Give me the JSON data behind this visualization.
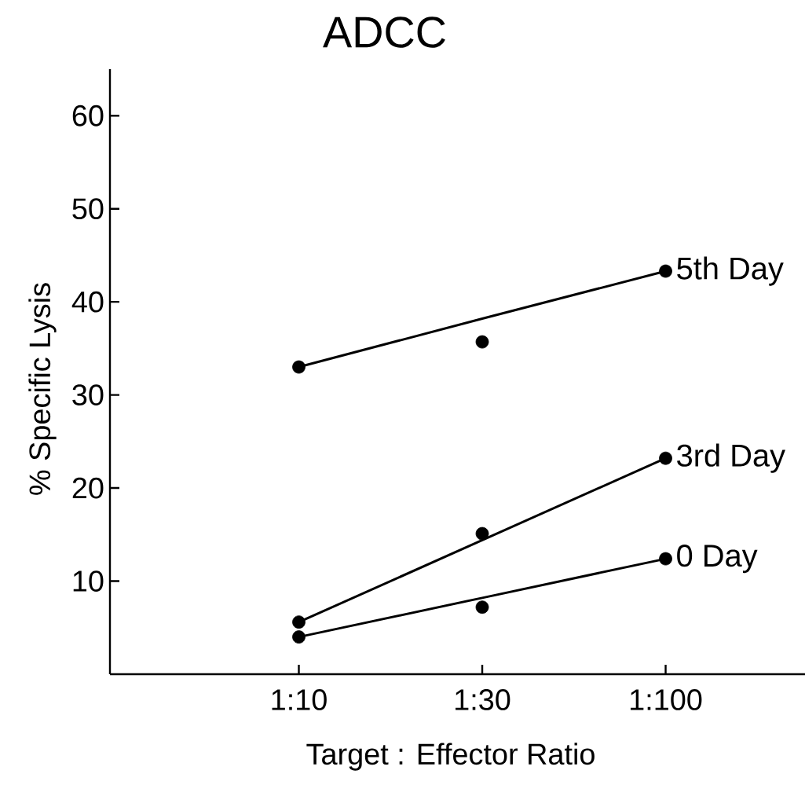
{
  "chart_data": {
    "type": "scatter",
    "title": "ADCC",
    "xlabel": "Target : Effector Ratio",
    "ylabel": "% Specific Lysis",
    "categories": [
      "1:10",
      "1:30",
      "1:100"
    ],
    "ylim": [
      0,
      65
    ],
    "yticks": [
      10,
      20,
      30,
      40,
      50,
      60
    ],
    "grid": false,
    "legend": false,
    "series": [
      {
        "name": "5th Day",
        "marker": "circle",
        "color": "#000000",
        "values": [
          33,
          35.7,
          43.3
        ]
      },
      {
        "name": "3rd Day",
        "marker": "circle",
        "color": "#000000",
        "values": [
          5.6,
          15.1,
          23.2
        ]
      },
      {
        "name": "0 Day",
        "marker": "circle",
        "color": "#000000",
        "values": [
          4.0,
          7.2,
          12.4
        ]
      },
      {
        "type": "line",
        "marker": "none",
        "color": "#000000",
        "values": [
          33,
          38.2,
          43.3
        ]
      },
      {
        "type": "line",
        "marker": "none",
        "color": "#000000",
        "values": [
          5.6,
          14.4,
          23.2
        ]
      },
      {
        "type": "line",
        "marker": "none",
        "color": "#000000",
        "values": [
          4.0,
          8.2,
          12.4
        ]
      }
    ]
  }
}
